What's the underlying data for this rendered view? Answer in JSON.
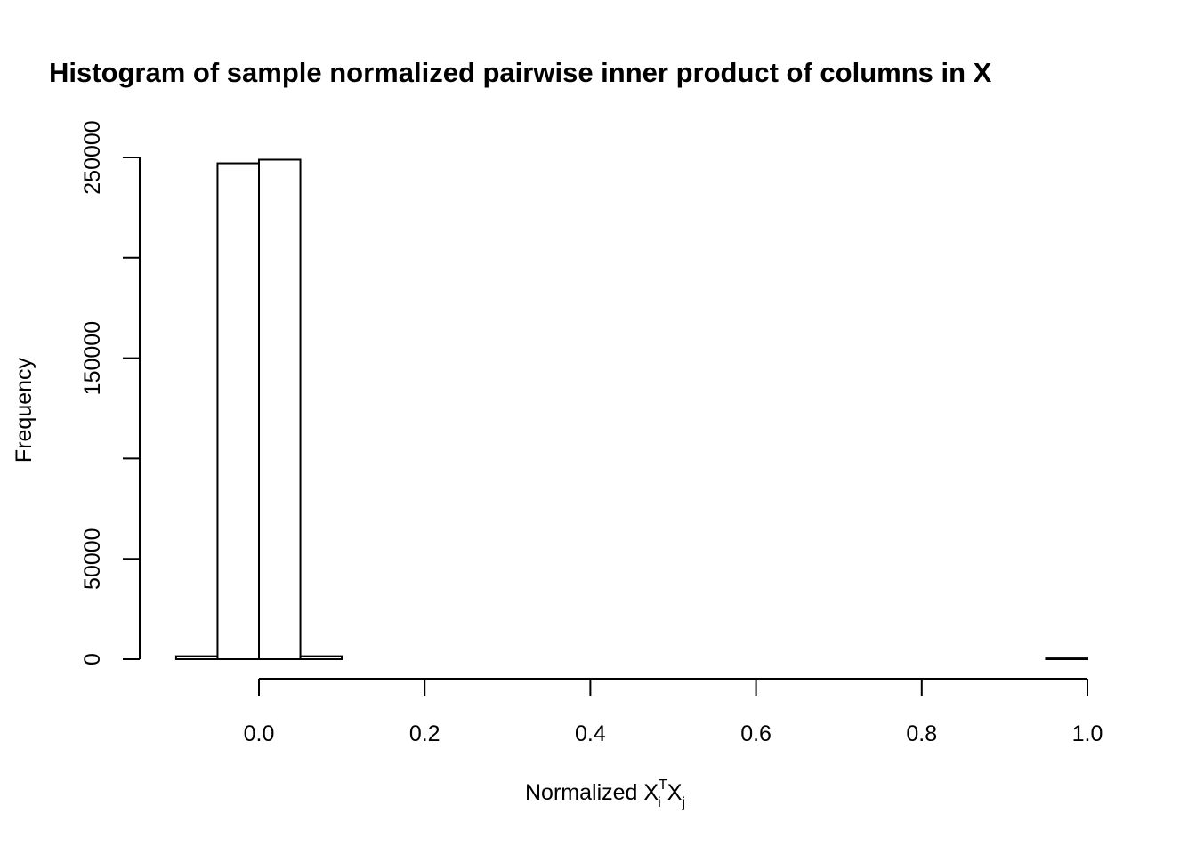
{
  "chart_data": {
    "type": "bar",
    "title": "Histogram of sample normalized pairwise inner product of columns in X",
    "xlabel": {
      "base": "Normalized X",
      "sup": "T",
      "sub_i": "i",
      "mid": " X",
      "sub_j": "j"
    },
    "ylabel": "Frequency",
    "bin_edges": [
      -0.1,
      -0.05,
      0.0,
      0.05,
      0.1,
      0.15,
      0.2,
      0.25,
      0.3,
      0.35,
      0.4,
      0.45,
      0.5,
      0.55,
      0.6,
      0.65,
      0.7,
      0.75,
      0.8,
      0.85,
      0.9,
      0.95,
      1.0
    ],
    "values": [
      1500,
      247100,
      248900,
      1500,
      0,
      0,
      0,
      0,
      0,
      0,
      0,
      0,
      0,
      0,
      0,
      0,
      0,
      0,
      0,
      0,
      0,
      400
    ],
    "xlim": [
      -0.1,
      1.0
    ],
    "ylim": [
      0,
      250000
    ],
    "x_ticks": [
      0.0,
      0.2,
      0.4,
      0.6,
      0.8,
      1.0
    ],
    "x_tick_labels": [
      "0.0",
      "0.2",
      "0.4",
      "0.6",
      "0.8",
      "1.0"
    ],
    "y_ticks": [
      0,
      50000,
      100000,
      150000,
      200000,
      250000
    ],
    "y_tick_labels": [
      "0",
      "50000",
      "",
      "150000",
      "",
      "250000"
    ],
    "grid": false
  }
}
